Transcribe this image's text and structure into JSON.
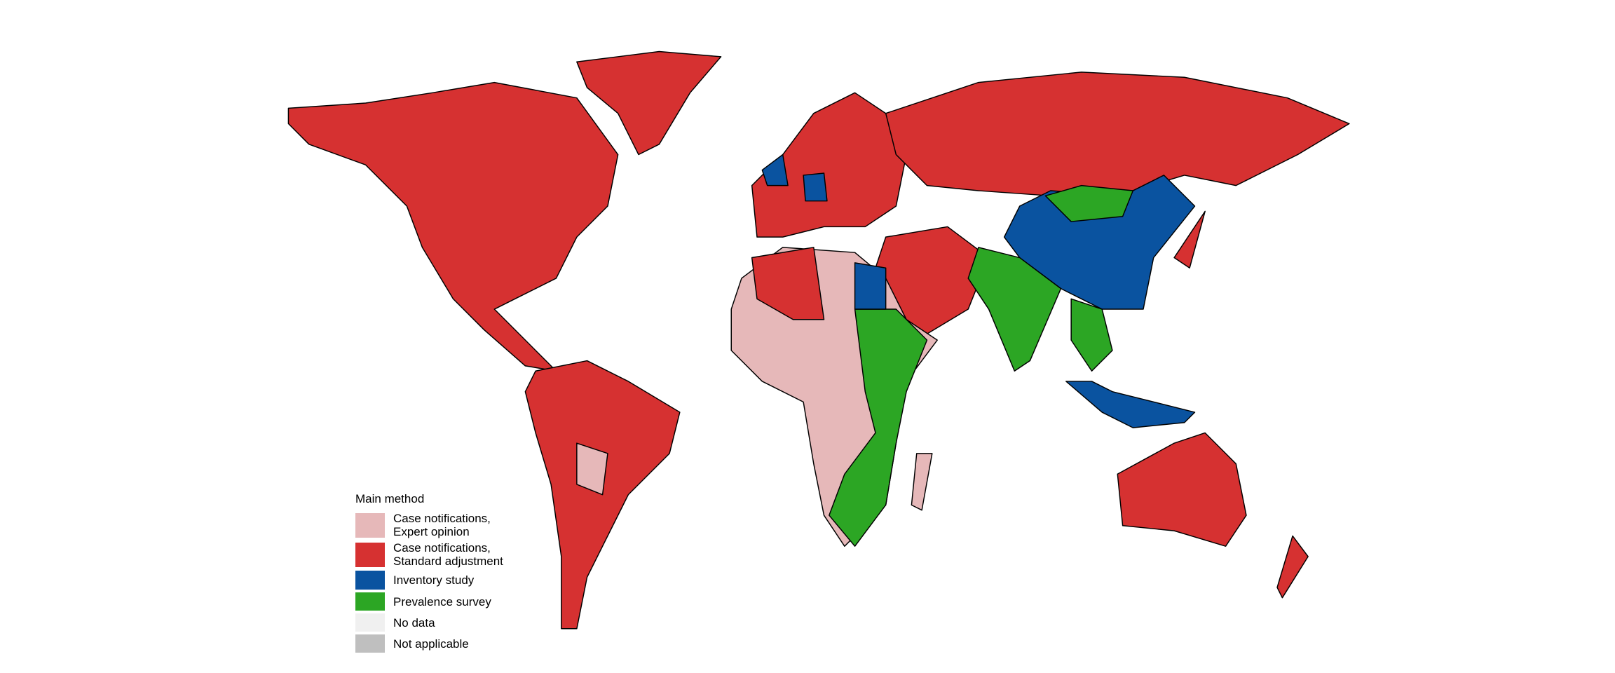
{
  "legend": {
    "title": "Main method",
    "items": [
      {
        "label": "Case notifications,\nExpert opinion",
        "color": "#e6b8b9"
      },
      {
        "label": "Case notifications,\nStandard adjustment",
        "color": "#d63131"
      },
      {
        "label": "Inventory study",
        "color": "#0a53a0"
      },
      {
        "label": "Prevalence survey",
        "color": "#2ca624"
      },
      {
        "label": "No data",
        "color": "#f0f0f0"
      },
      {
        "label": "Not applicable",
        "color": "#bfbfbf"
      }
    ]
  }
}
